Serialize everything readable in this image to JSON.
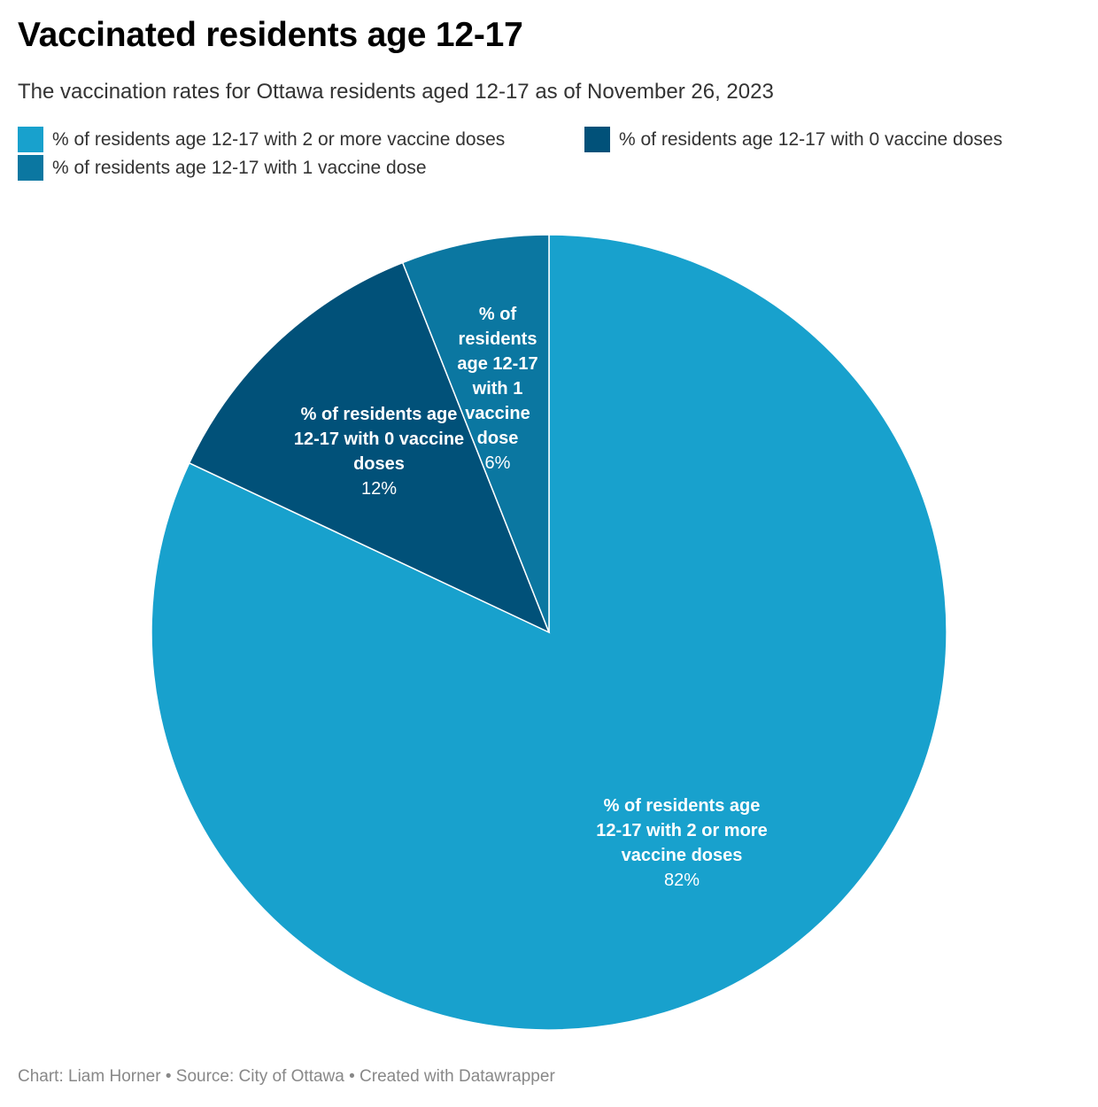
{
  "title": "Vaccinated residents age 12-17",
  "subtitle": "The vaccination rates for Ottawa residents aged 12-17 as of November 26, 2023",
  "footer": "Chart: Liam Horner • Source: City of Ottawa • Created with Datawrapper",
  "chart_data": {
    "type": "pie",
    "title": "Vaccinated residents age 12-17",
    "subtitle": "The vaccination rates for Ottawa residents aged 12-17 as of November 26, 2023",
    "legend_position": "top-left",
    "slices": [
      {
        "name": "% of residents age 12-17 with 2 or more vaccine doses",
        "value": 82,
        "value_label": "82%",
        "label_lines": [
          "% of residents age",
          "12-17 with 2 or more",
          "vaccine doses"
        ],
        "color": "#18a1cd"
      },
      {
        "name": "% of residents age 12-17 with 0 vaccine doses",
        "value": 12,
        "value_label": "12%",
        "label_lines": [
          "% of residents age",
          "12-17 with 0 vaccine",
          "doses"
        ],
        "color": "#015179"
      },
      {
        "name": "% of residents age 12-17 with 1 vaccine dose",
        "value": 6,
        "value_label": "6%",
        "label_lines": [
          "% of",
          "residents",
          "age 12-17",
          "with 1",
          "vaccine",
          "dose"
        ],
        "color": "#0b77a1"
      }
    ]
  }
}
